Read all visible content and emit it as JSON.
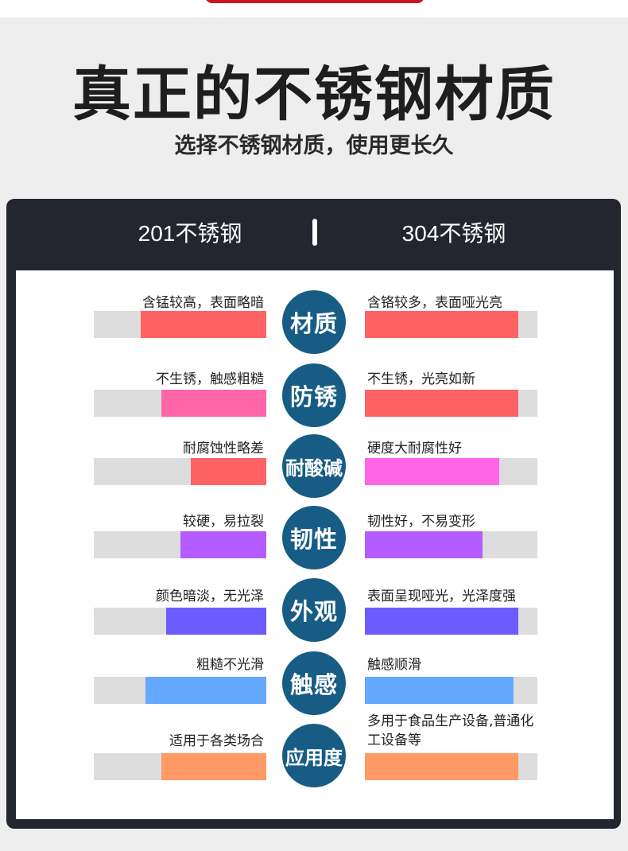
{
  "colors": {
    "background": "#eeeeee",
    "panel": "#23252f",
    "circle": "#175c84",
    "track": "#dddddd",
    "red": "#ff6262",
    "pink": "#ff66a8",
    "magenta": "#ff66e6",
    "purple": "#b35cff",
    "indigo": "#6c5cff",
    "blue": "#64a8ff",
    "orange": "#ff9966"
  },
  "header": {
    "title": "真正的不锈钢材质",
    "subtitle": "选择不锈钢材质，使用更长久"
  },
  "comparison": {
    "left_heading": "201不锈钢",
    "right_heading": "304不锈钢",
    "rows": [
      {
        "label": "材质",
        "left_text": "含锰较高，表面略暗",
        "left_level": 0.73,
        "left_color": "#ff6262",
        "right_text": "含铬较多，表面哑光亮",
        "right_level": 0.89,
        "right_color": "#ff6262"
      },
      {
        "label": "防锈",
        "left_text": "不生锈，触感粗糙",
        "left_level": 0.61,
        "left_color": "#ff66a8",
        "right_text": "不生锈，光亮如新",
        "right_level": 0.89,
        "right_color": "#ff6262"
      },
      {
        "label": "耐酸碱",
        "left_text": "耐腐蚀性略差",
        "left_level": 0.44,
        "left_color": "#ff6262",
        "right_text": "硬度大耐腐性好",
        "right_level": 0.78,
        "right_color": "#ff66e6"
      },
      {
        "label": "韧性",
        "left_text": "较硬，易拉裂",
        "left_level": 0.5,
        "left_color": "#b35cff",
        "right_text": "韧性好，不易变形",
        "right_level": 0.68,
        "right_color": "#b35cff"
      },
      {
        "label": "外观",
        "left_text": "颜色暗淡，无光泽",
        "left_level": 0.58,
        "left_color": "#6c5cff",
        "right_text": "表面呈现哑光，光泽度强",
        "right_level": 0.89,
        "right_color": "#6c5cff"
      },
      {
        "label": "触感",
        "left_text": "粗糙不光滑",
        "left_level": 0.7,
        "left_color": "#64a8ff",
        "right_text": "触感顺滑",
        "right_level": 0.86,
        "right_color": "#64a8ff"
      },
      {
        "label": "应用度",
        "left_text": "适用于各类场合",
        "left_level": 0.61,
        "left_color": "#ff9966",
        "right_text": "多用于食品生产设备,普通化工设备等",
        "right_level": 0.89,
        "right_color": "#ff9966"
      }
    ]
  }
}
